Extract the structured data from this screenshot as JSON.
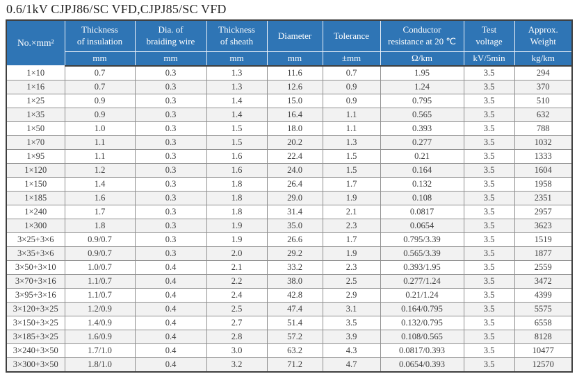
{
  "page": {
    "title": "0.6/1kV CJPJ86/SC VFD,CJPJ85/SC VFD"
  },
  "table": {
    "columns": [
      {
        "label": "No.×mm²",
        "unit": ""
      },
      {
        "label": "Thickness\nof insulation",
        "unit": "mm"
      },
      {
        "label": "Dia. of\nbraiding wire",
        "unit": "mm"
      },
      {
        "label": "Thickness\nof sheath",
        "unit": "mm"
      },
      {
        "label": "Diameter",
        "unit": "mm"
      },
      {
        "label": "Tolerance",
        "unit": "±mm"
      },
      {
        "label": "Conductor\nresistance at 20 ℃",
        "unit": "Ω/km"
      },
      {
        "label": "Test\nvoltage",
        "unit": "kV/5min"
      },
      {
        "label": "Approx.\nWeight",
        "unit": "kg/km"
      }
    ],
    "rows": [
      [
        "1×10",
        "0.7",
        "0.3",
        "1.3",
        "11.6",
        "0.7",
        "1.95",
        "3.5",
        "294"
      ],
      [
        "1×16",
        "0.7",
        "0.3",
        "1.3",
        "12.6",
        "0.9",
        "1.24",
        "3.5",
        "370"
      ],
      [
        "1×25",
        "0.9",
        "0.3",
        "1.4",
        "15.0",
        "0.9",
        "0.795",
        "3.5",
        "510"
      ],
      [
        "1×35",
        "0.9",
        "0.3",
        "1.4",
        "16.4",
        "1.1",
        "0.565",
        "3.5",
        "632"
      ],
      [
        "1×50",
        "1.0",
        "0.3",
        "1.5",
        "18.0",
        "1.1",
        "0.393",
        "3.5",
        "788"
      ],
      [
        "1×70",
        "1.1",
        "0.3",
        "1.5",
        "20.2",
        "1.3",
        "0.277",
        "3.5",
        "1032"
      ],
      [
        "1×95",
        "1.1",
        "0.3",
        "1.6",
        "22.4",
        "1.5",
        "0.21",
        "3.5",
        "1333"
      ],
      [
        "1×120",
        "1.2",
        "0.3",
        "1.6",
        "24.0",
        "1.5",
        "0.164",
        "3.5",
        "1604"
      ],
      [
        "1×150",
        "1.4",
        "0.3",
        "1.8",
        "26.4",
        "1.7",
        "0.132",
        "3.5",
        "1958"
      ],
      [
        "1×185",
        "1.6",
        "0.3",
        "1.8",
        "29.0",
        "1.9",
        "0.108",
        "3.5",
        "2351"
      ],
      [
        "1×240",
        "1.7",
        "0.3",
        "1.8",
        "31.4",
        "2.1",
        "0.0817",
        "3.5",
        "2957"
      ],
      [
        "1×300",
        "1.8",
        "0.3",
        "1.9",
        "35.0",
        "2.3",
        "0.0654",
        "3.5",
        "3623"
      ],
      [
        "3×25+3×6",
        "0.9/0.7",
        "0.3",
        "1.9",
        "26.6",
        "1.7",
        "0.795/3.39",
        "3.5",
        "1519"
      ],
      [
        "3×35+3×6",
        "0.9/0.7",
        "0.3",
        "2.0",
        "29.2",
        "1.9",
        "0.565/3.39",
        "3.5",
        "1877"
      ],
      [
        "3×50+3×10",
        "1.0/0.7",
        "0.4",
        "2.1",
        "33.2",
        "2.3",
        "0.393/1.95",
        "3.5",
        "2559"
      ],
      [
        "3×70+3×16",
        "1.1/0.7",
        "0.4",
        "2.2",
        "38.0",
        "2.5",
        "0.277/1.24",
        "3.5",
        "3472"
      ],
      [
        "3×95+3×16",
        "1.1/0.7",
        "0.4",
        "2.4",
        "42.8",
        "2.9",
        "0.21/1.24",
        "3.5",
        "4399"
      ],
      [
        "3×120+3×25",
        "1.2/0.9",
        "0.4",
        "2.5",
        "47.4",
        "3.1",
        "0.164/0.795",
        "3.5",
        "5575"
      ],
      [
        "3×150+3×25",
        "1.4/0.9",
        "0.4",
        "2.7",
        "51.4",
        "3.5",
        "0.132/0.795",
        "3.5",
        "6558"
      ],
      [
        "3×185+3×25",
        "1.6/0.9",
        "0.4",
        "2.8",
        "57.2",
        "3.9",
        "0.108/0.565",
        "3.5",
        "8128"
      ],
      [
        "3×240+3×50",
        "1.7/1.0",
        "0.4",
        "3.0",
        "63.2",
        "4.3",
        "0.0817/0.393",
        "3.5",
        "10477"
      ],
      [
        "3×300+3×50",
        "1.8/1.0",
        "0.4",
        "3.2",
        "71.2",
        "4.7",
        "0.0654/0.393",
        "3.5",
        "12570"
      ]
    ],
    "colors": {
      "header_bg": "#2f75b5",
      "header_text": "#ffffff",
      "row_alt_bg": "#f2f2f2",
      "grid_line": "#8f8f8f",
      "outer_border": "#3f3f3f"
    }
  }
}
